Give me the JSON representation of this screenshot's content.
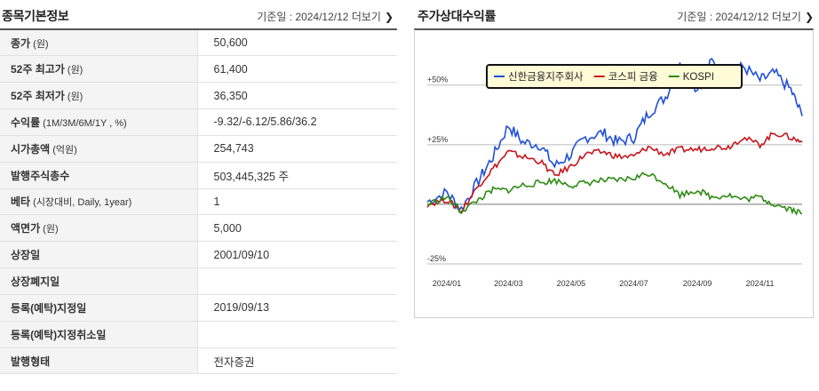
{
  "info_panel": {
    "title": "종목기본정보",
    "date_prefix": "기준일 : ",
    "date": "2024/12/12",
    "more_label": "더보기",
    "rows": [
      {
        "label": "종가",
        "sub": " (원)",
        "value": "50,600"
      },
      {
        "label": "52주 최고가",
        "sub": " (원)",
        "value": "61,400"
      },
      {
        "label": "52주 최저가",
        "sub": " (원)",
        "value": "36,350"
      },
      {
        "label": "수익률",
        "sub": " (1M/3M/6M/1Y , %)",
        "value": "-9.32/-6.12/5.86/36.2"
      },
      {
        "label": "시가총액",
        "sub": " (억원)",
        "value": "254,743"
      },
      {
        "label": "발행주식총수",
        "sub": "",
        "value": "503,445,325 주"
      },
      {
        "label": "베타",
        "sub": " (시장대비, Daily, 1year)",
        "value": "1"
      },
      {
        "label": "액면가",
        "sub": " (원)",
        "value": "5,000"
      },
      {
        "label": "상장일",
        "sub": "",
        "value": "2001/09/10"
      },
      {
        "label": "상장폐지일",
        "sub": "",
        "value": ""
      },
      {
        "label": "등록(예탁)지정일",
        "sub": "",
        "value": "2019/09/13"
      },
      {
        "label": "등록(예탁)지정취소일",
        "sub": "",
        "value": ""
      },
      {
        "label": "발행형태",
        "sub": "",
        "value": "전자증권"
      }
    ]
  },
  "chart_panel": {
    "title": "주가상대수익률",
    "date_prefix": "기준일 : ",
    "date": "2024/12/12",
    "more_label": "더보기"
  },
  "chart_data": {
    "type": "line",
    "title": "",
    "xlabel": "",
    "ylabel": "",
    "ylim": [
      -25,
      73
    ],
    "y_ticks": [
      "+50%",
      "+25%",
      "-25%"
    ],
    "x_ticks": [
      "2024/01",
      "2024/03",
      "2024/05",
      "2024/07",
      "2024/09",
      "2024/11"
    ],
    "legend_position": "top-center",
    "grid": true,
    "colors": {
      "신한금융지주회사": "#1f4fd8",
      "코스피 금융": "#c8151b",
      "KOSPI": "#2e8b12"
    },
    "x": [
      "2023/12/13",
      "2024/01/01",
      "2024/01/15",
      "2024/02/01",
      "2024/02/15",
      "2024/03/01",
      "2024/03/15",
      "2024/04/01",
      "2024/04/15",
      "2024/05/01",
      "2024/05/15",
      "2024/06/01",
      "2024/06/15",
      "2024/07/01",
      "2024/07/15",
      "2024/08/01",
      "2024/08/15",
      "2024/09/01",
      "2024/09/15",
      "2024/10/01",
      "2024/10/15",
      "2024/11/01",
      "2024/11/15",
      "2024/12/01",
      "2024/12/12"
    ],
    "series": [
      {
        "name": "신한금융지주회사",
        "values": [
          1,
          5,
          -2,
          10,
          20,
          33,
          26,
          25,
          16,
          21,
          28,
          30,
          26,
          28,
          38,
          45,
          58,
          48,
          60,
          52,
          58,
          52,
          55,
          48,
          37
        ]
      },
      {
        "name": "코스피 금융",
        "values": [
          0,
          2,
          -3,
          8,
          15,
          22,
          20,
          18,
          12,
          16,
          21,
          22,
          20,
          20,
          24,
          21,
          23,
          23,
          24,
          24,
          28,
          25,
          30,
          28,
          26
        ]
      },
      {
        "name": "KOSPI",
        "values": [
          0,
          3,
          -3,
          2,
          6,
          6,
          8,
          9,
          10,
          8,
          9,
          10,
          10,
          11,
          13,
          9,
          4,
          6,
          3,
          4,
          2,
          3,
          0,
          -2,
          -4
        ]
      }
    ]
  }
}
